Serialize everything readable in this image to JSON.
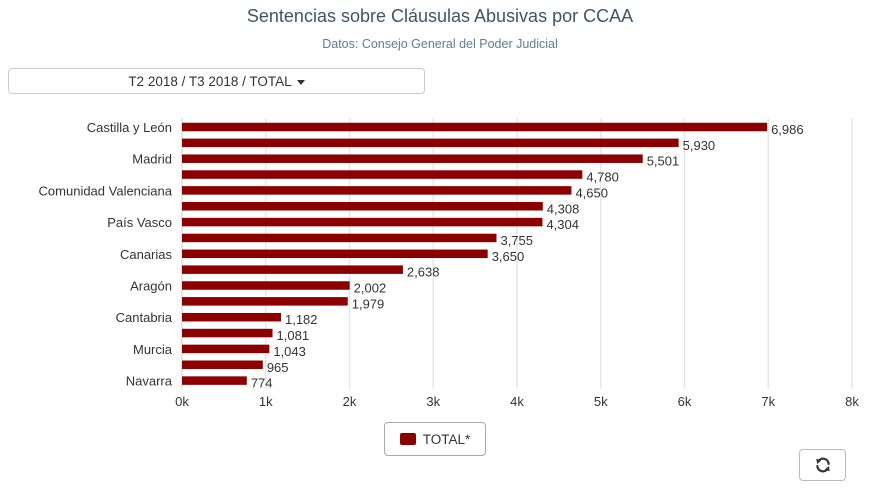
{
  "header": {
    "title": "Sentencias sobre Cláusulas Abusivas por CCAA",
    "subtitle": "Datos: Consejo General del Poder Judicial"
  },
  "selector": {
    "label": "T2 2018 / T3 2018 / TOTAL"
  },
  "legend": {
    "label": "TOTAL*"
  },
  "colors": {
    "bar": "#8b0000",
    "grid": "#e4e8ec",
    "axis_text": "#333333"
  },
  "icons": {
    "selector_caret": "caret-down-icon",
    "refresh": "refresh-icon"
  },
  "chart_data": {
    "type": "bar",
    "orientation": "horizontal",
    "series": [
      {
        "name": "TOTAL*",
        "values": [
          6986,
          5930,
          5501,
          4780,
          4650,
          4308,
          4304,
          3755,
          3650,
          2638,
          2002,
          1979,
          1182,
          1081,
          1043,
          965,
          774
        ]
      }
    ],
    "category_labels": [
      "Castilla y León",
      "",
      "Madrid",
      "",
      "Comunidad Valenciana",
      "",
      "País Vasco",
      "",
      "Canarias",
      "",
      "Aragón",
      "",
      "Cantabria",
      "",
      "Murcia",
      "",
      "Navarra"
    ],
    "data_labels": [
      "6,986",
      "5,930",
      "5,501",
      "4,780",
      "4,650",
      "4,308",
      "4,304",
      "3,755",
      "3,650",
      "2,638",
      "2,002",
      "1,979",
      "1,182",
      "1,081",
      "1,043",
      "965",
      "774"
    ],
    "x_ticks": [
      0,
      1000,
      2000,
      3000,
      4000,
      5000,
      6000,
      7000,
      8000
    ],
    "x_tick_labels": [
      "0k",
      "1k",
      "2k",
      "3k",
      "4k",
      "5k",
      "6k",
      "7k",
      "8k"
    ],
    "xlim": [
      0,
      8000
    ],
    "grid": true,
    "legend_position": "bottom-center"
  }
}
